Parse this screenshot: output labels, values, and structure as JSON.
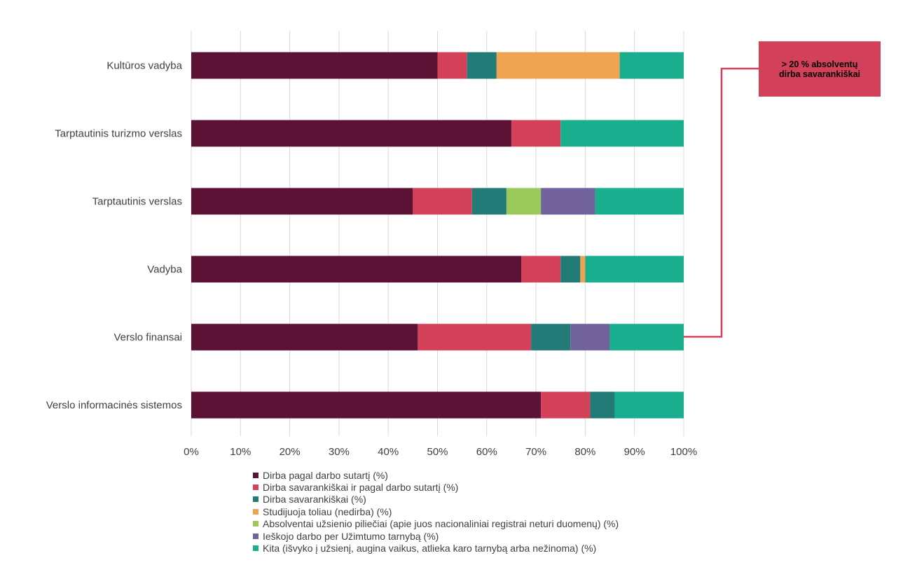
{
  "chart_data": {
    "type": "bar",
    "orientation": "horizontal",
    "stacked": true,
    "categories": [
      "Kultūros vadyba",
      "Tarptautinis turizmo verslas",
      "Tarptautinis verslas",
      "Vadyba",
      "Verslo finansai",
      "Verslo informacinės sistemos"
    ],
    "series": [
      {
        "name": "Dirba pagal darbo sutartį (%)",
        "color": "#5c1235",
        "values": [
          50,
          65,
          45,
          67,
          46,
          71
        ]
      },
      {
        "name": "Dirba savarankiškai ir pagal darbo sutartį (%)",
        "color": "#d2405a",
        "values": [
          6,
          10,
          12,
          8,
          23,
          10
        ]
      },
      {
        "name": "Dirba savarankiškai (%)",
        "color": "#237b77",
        "values": [
          6,
          0,
          7,
          4,
          8,
          5
        ]
      },
      {
        "name": "Studijuoja toliau (nedirba) (%)",
        "color": "#eea350",
        "values": [
          25,
          0,
          0,
          1,
          0,
          0
        ]
      },
      {
        "name": "Absolventai užsienio piliečiai (apie juos nacionaliniai registrai neturi duomenų) (%)",
        "color": "#9bc95c",
        "values": [
          0,
          0,
          7,
          0,
          0,
          0
        ]
      },
      {
        "name": "Ieškojo darbo per Užimtumo tarnybą (%)",
        "color": "#72629c",
        "values": [
          0,
          0,
          11,
          0,
          8,
          0
        ]
      },
      {
        "name": "Kita (išvyko į užsienį, augina vaikus, atlieka karo tarnybą arba nežinoma) (%)",
        "color": "#19ae8e",
        "values": [
          13,
          25,
          18,
          20,
          15,
          14
        ]
      }
    ],
    "xlim": [
      0,
      100
    ],
    "xticks": [
      "0%",
      "10%",
      "20%",
      "30%",
      "40%",
      "50%",
      "60%",
      "70%",
      "80%",
      "90%",
      "100%"
    ],
    "grid": "vertical",
    "legend_position": "bottom",
    "annotation": {
      "text_line1": "> 20 % absolventų",
      "text_line2": "dirba savarankiškai",
      "target_category": "Verslo finansai",
      "color": "#d2405a"
    }
  }
}
